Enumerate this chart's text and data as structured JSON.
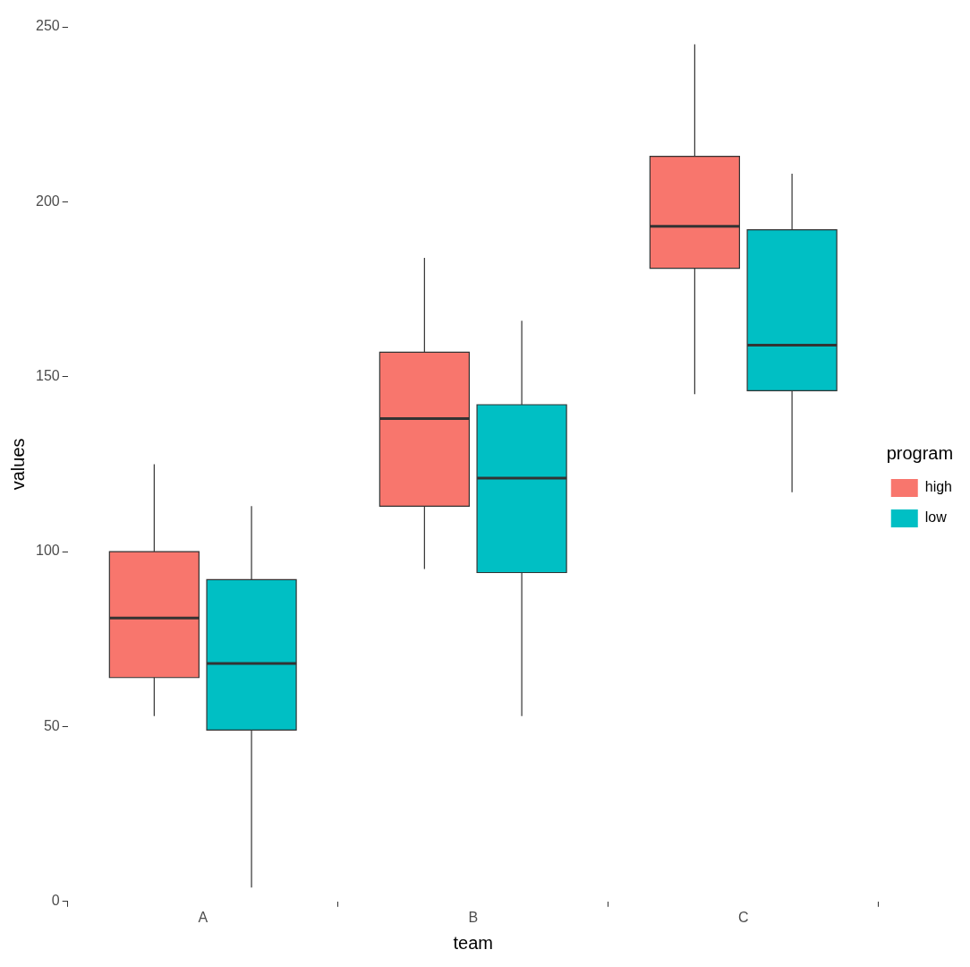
{
  "chart_data": {
    "type": "box",
    "xlabel": "team",
    "ylabel": "values",
    "legend_title": "program",
    "legend": "right",
    "grid": false,
    "categories": [
      "A",
      "B",
      "C"
    ],
    "ylim": [
      0,
      250
    ],
    "yticks": [
      0,
      50,
      100,
      150,
      200,
      250
    ],
    "series": [
      {
        "name": "high",
        "color": "#f8766d",
        "boxes": [
          {
            "low": 53,
            "q1": 64,
            "median": 81,
            "q3": 100,
            "high": 125
          },
          {
            "low": 95,
            "q1": 113,
            "median": 138,
            "q3": 157,
            "high": 184
          },
          {
            "low": 145,
            "q1": 181,
            "median": 193,
            "q3": 213,
            "high": 245
          }
        ]
      },
      {
        "name": "low",
        "color": "#00bfc4",
        "boxes": [
          {
            "low": 4,
            "q1": 49,
            "median": 68,
            "q3": 92,
            "high": 113
          },
          {
            "low": 53,
            "q1": 94,
            "median": 121,
            "q3": 142,
            "high": 166
          },
          {
            "low": 117,
            "q1": 146,
            "median": 159,
            "q3": 192,
            "high": 208
          }
        ]
      }
    ]
  }
}
